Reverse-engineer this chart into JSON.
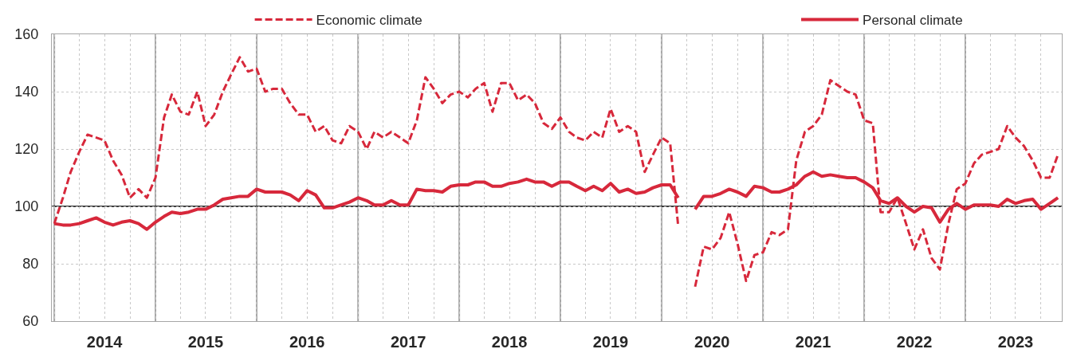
{
  "chart_data": {
    "type": "line",
    "x": [
      "2014-01",
      "2014-02",
      "2014-03",
      "2014-04",
      "2014-05",
      "2014-06",
      "2014-07",
      "2014-08",
      "2014-09",
      "2014-10",
      "2014-11",
      "2014-12",
      "2015-01",
      "2015-02",
      "2015-03",
      "2015-04",
      "2015-05",
      "2015-06",
      "2015-07",
      "2015-08",
      "2015-09",
      "2015-10",
      "2015-11",
      "2015-12",
      "2016-01",
      "2016-02",
      "2016-03",
      "2016-04",
      "2016-05",
      "2016-06",
      "2016-07",
      "2016-08",
      "2016-09",
      "2016-10",
      "2016-11",
      "2016-12",
      "2017-01",
      "2017-02",
      "2017-03",
      "2017-04",
      "2017-05",
      "2017-06",
      "2017-07",
      "2017-08",
      "2017-09",
      "2017-10",
      "2017-11",
      "2017-12",
      "2018-01",
      "2018-02",
      "2018-03",
      "2018-04",
      "2018-05",
      "2018-06",
      "2018-07",
      "2018-08",
      "2018-09",
      "2018-10",
      "2018-11",
      "2018-12",
      "2019-01",
      "2019-02",
      "2019-03",
      "2019-04",
      "2019-05",
      "2019-06",
      "2019-07",
      "2019-08",
      "2019-09",
      "2019-10",
      "2019-11",
      "2019-12",
      "2020-01",
      "2020-02",
      "2020-03",
      "2020-04",
      "2020-05",
      "2020-06",
      "2020-07",
      "2020-08",
      "2020-09",
      "2020-10",
      "2020-11",
      "2020-12",
      "2021-01",
      "2021-02",
      "2021-03",
      "2021-04",
      "2021-05",
      "2021-06",
      "2021-07",
      "2021-08",
      "2021-09",
      "2021-10",
      "2021-11",
      "2021-12",
      "2022-01",
      "2022-02",
      "2022-03",
      "2022-04",
      "2022-05",
      "2022-06",
      "2022-07",
      "2022-08",
      "2022-09",
      "2022-10",
      "2022-11",
      "2022-12",
      "2023-01",
      "2023-02",
      "2023-03",
      "2023-04",
      "2023-05",
      "2023-06",
      "2023-07",
      "2023-08",
      "2023-09",
      "2023-10",
      "2023-11",
      "2023-12"
    ],
    "series": [
      {
        "name": "Economic climate",
        "color": "#d7283b",
        "line_style": "dashed",
        "values": [
          94,
          103,
          112,
          119,
          125,
          124,
          123,
          116,
          111,
          103,
          106,
          103,
          110,
          131,
          139,
          133,
          132,
          140,
          128,
          132,
          140,
          146,
          152,
          147,
          148,
          140,
          141,
          141,
          136,
          132,
          132,
          126,
          128,
          123,
          122,
          128,
          126,
          120,
          126,
          124,
          126,
          124,
          122,
          130,
          145,
          141,
          136,
          139,
          140,
          138,
          141,
          143,
          133,
          143,
          143,
          137,
          139,
          136,
          129,
          127,
          131,
          126,
          124,
          123,
          126,
          124,
          134,
          126,
          128,
          126,
          112,
          118,
          124,
          122,
          93,
          null,
          72,
          86,
          85,
          89,
          98,
          87,
          74,
          83,
          84,
          91,
          90,
          92,
          116,
          126,
          128,
          132,
          144,
          142,
          140,
          139,
          130,
          129,
          98,
          98,
          103,
          94,
          85,
          92,
          82,
          78,
          94,
          106,
          108,
          115,
          118,
          119,
          120,
          128,
          124,
          121,
          116,
          110,
          110,
          118
        ]
      },
      {
        "name": "Personal climate",
        "color": "#d7283b",
        "line_style": "solid",
        "values": [
          94,
          93.5,
          93.5,
          94,
          95,
          96,
          94.5,
          93.5,
          94.5,
          95,
          94,
          92,
          94.5,
          96.5,
          98,
          97.5,
          98,
          99,
          99,
          100.5,
          102.5,
          103,
          103.5,
          103.5,
          106,
          105,
          105,
          105,
          104,
          102,
          105.5,
          104,
          99.5,
          99.5,
          100.5,
          101.5,
          103,
          102,
          100.5,
          100.5,
          102,
          100.5,
          100.5,
          106,
          105.5,
          105.5,
          105,
          107,
          107.5,
          107.5,
          108.5,
          108.5,
          107,
          107,
          108,
          108.5,
          109.5,
          108.5,
          108.5,
          107,
          108.5,
          108.5,
          107,
          105.5,
          107,
          105.5,
          108,
          105,
          106,
          104.5,
          105,
          106.5,
          107.5,
          107.5,
          103,
          null,
          99,
          103.5,
          103.5,
          104.5,
          106,
          105,
          103.5,
          107,
          106.5,
          105,
          105,
          106,
          107.5,
          110.5,
          112,
          110.5,
          111,
          110.5,
          110,
          110,
          108.5,
          106.5,
          102,
          101,
          103,
          100,
          98,
          100,
          99.5,
          94.5,
          99,
          101,
          99,
          100.5,
          100.5,
          100.5,
          100,
          102.5,
          101,
          102,
          102.5,
          99,
          101,
          103
        ]
      }
    ],
    "xlim": [
      "2013-12-23",
      "2023-12-15"
    ],
    "xticks": [
      {
        "value": "2014-01",
        "label": null
      },
      {
        "value": "2015-01",
        "label": null
      },
      {
        "value": "2016-01",
        "label": null
      },
      {
        "value": "2017-01",
        "label": null
      },
      {
        "value": "2018-01",
        "label": null
      },
      {
        "value": "2019-01",
        "label": null
      },
      {
        "value": "2020-01",
        "label": null
      },
      {
        "value": "2021-01",
        "label": null
      },
      {
        "value": "2022-01",
        "label": null
      },
      {
        "value": "2023-01",
        "label": null
      },
      {
        "value": "2014-07",
        "label": "2014"
      },
      {
        "value": "2015-07",
        "label": "2015"
      },
      {
        "value": "2016-07",
        "label": "2016"
      },
      {
        "value": "2017-07",
        "label": "2017"
      },
      {
        "value": "2018-07",
        "label": "2018"
      },
      {
        "value": "2019-07",
        "label": "2019"
      },
      {
        "value": "2020-07",
        "label": "2020"
      },
      {
        "value": "2021-07",
        "label": "2021"
      },
      {
        "value": "2022-07",
        "label": "2022"
      },
      {
        "value": "2023-07",
        "label": "2023"
      }
    ],
    "ylim": [
      60,
      160
    ],
    "yticks": [
      60,
      80,
      100,
      120,
      140,
      160
    ],
    "ref_lines": [
      {
        "axis": "y",
        "value": 100,
        "color": "#000000"
      }
    ],
    "grid": true,
    "legend": "top"
  }
}
